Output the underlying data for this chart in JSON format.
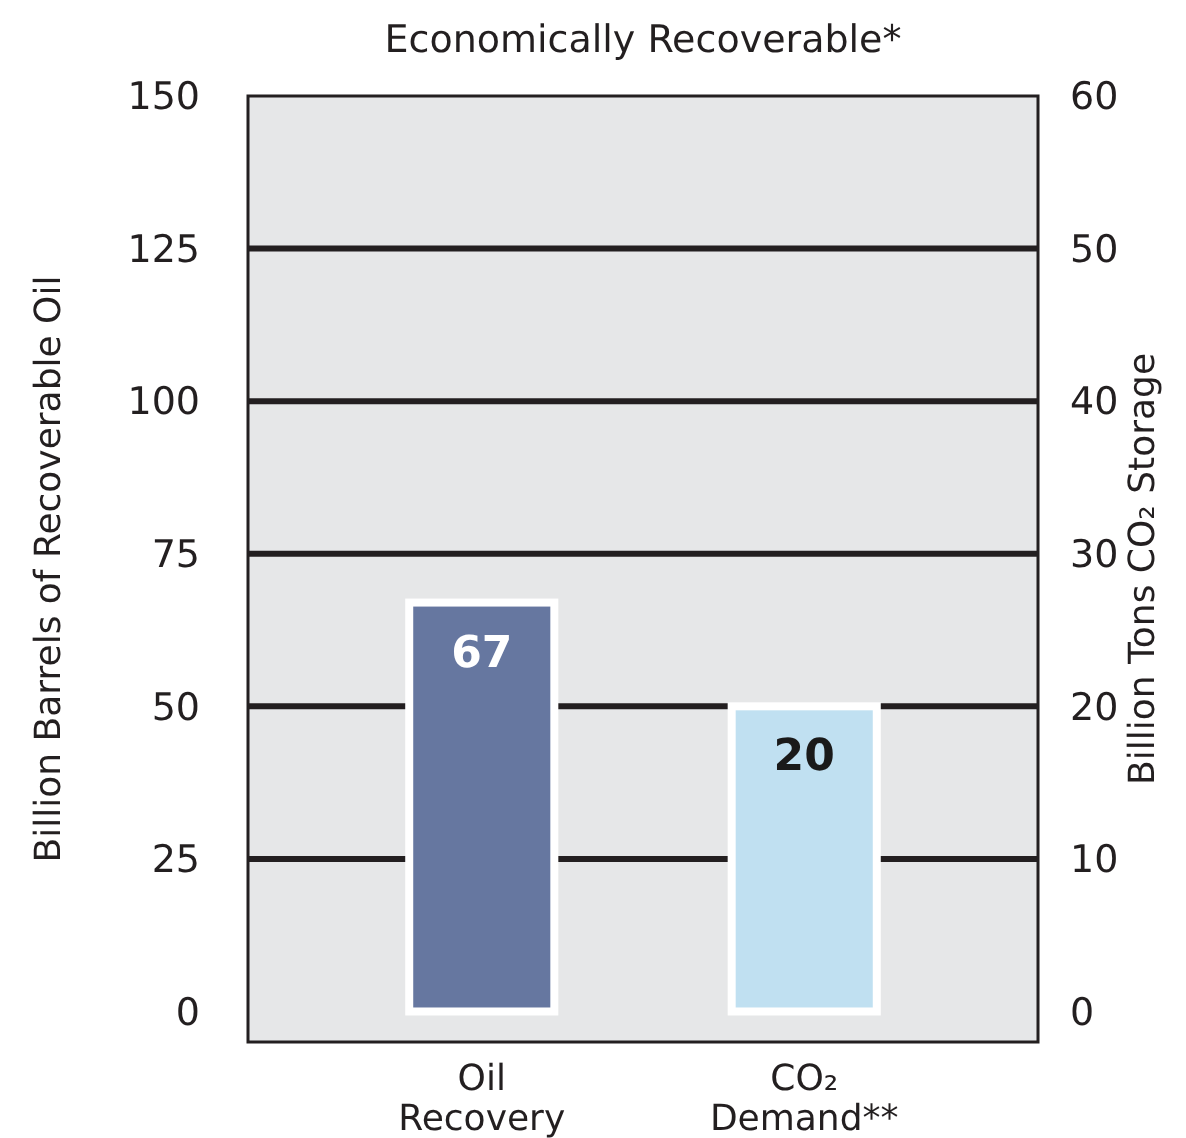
{
  "chart_data": {
    "type": "bar",
    "title": "Economically Recoverable*",
    "ylabel": "Billion Barrels of Recoverable Oil",
    "y2label": "Billion Tons CO₂ Storage",
    "categories": [
      "Oil Recovery",
      "CO₂ Demand**"
    ],
    "series": [
      {
        "color": "#6677a0",
        "values": [
          67,
          null
        ]
      },
      {
        "color": "#c0e0f1",
        "values": [
          null,
          20
        ],
        "axis": "y2"
      }
    ],
    "ylim": [
      -5,
      150
    ],
    "yticks": [
      0,
      25,
      50,
      75,
      100,
      125,
      150
    ],
    "y2lim": [
      -2,
      60
    ],
    "y2ticks": [
      0,
      10,
      20,
      30,
      40,
      50,
      60
    ],
    "grid": "y",
    "data_labels": true
  }
}
